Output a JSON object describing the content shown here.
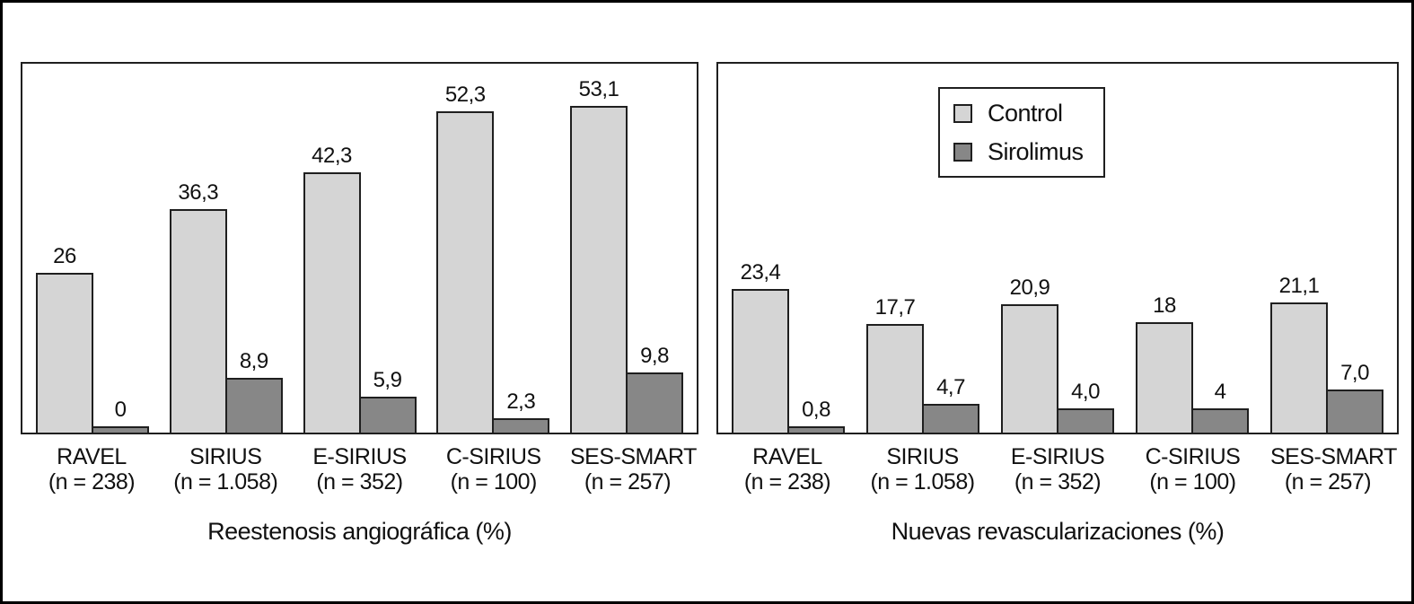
{
  "colors": {
    "control_fill": "#d5d5d5",
    "sirolimus_fill": "#878787",
    "stroke": "#1f1f1f",
    "background": "#ffffff"
  },
  "legend": {
    "items": [
      {
        "label": "Control",
        "color_key": "control_fill"
      },
      {
        "label": "Sirolimus",
        "color_key": "sirolimus_fill"
      }
    ]
  },
  "chart_data": [
    {
      "type": "bar",
      "title": "Reestenosis angiográfica (%)",
      "xlabel": "Reestenosis angiográfica (%)",
      "ylabel": "",
      "ylim": [
        0,
        60
      ],
      "grid": false,
      "categories": [
        "RAVEL",
        "SIRIUS",
        "E-SIRIUS",
        "C-SIRIUS",
        "SES-SMART"
      ],
      "category_sublabels": [
        "(n = 238)",
        "(n = 1.058)",
        "(n = 352)",
        "(n = 100)",
        "(n = 257)"
      ],
      "series": [
        {
          "name": "Control",
          "values": [
            26,
            36.3,
            42.3,
            52.3,
            53.1
          ],
          "value_labels": [
            "26",
            "36,3",
            "42,3",
            "52,3",
            "53,1"
          ]
        },
        {
          "name": "Sirolimus",
          "values": [
            0,
            8.9,
            5.9,
            2.3,
            9.8
          ],
          "value_labels": [
            "0",
            "8,9",
            "5,9",
            "2,3",
            "9,8"
          ]
        }
      ]
    },
    {
      "type": "bar",
      "title": "Nuevas revascularizaciones (%)",
      "xlabel": "Nuevas revascularizaciones (%)",
      "ylabel": "",
      "ylim": [
        0,
        60
      ],
      "grid": false,
      "legend_position": "top-center",
      "categories": [
        "RAVEL",
        "SIRIUS",
        "E-SIRIUS",
        "C-SIRIUS",
        "SES-SMART"
      ],
      "category_sublabels": [
        "(n = 238)",
        "(n = 1.058)",
        "(n = 352)",
        "(n = 100)",
        "(n = 257)"
      ],
      "series": [
        {
          "name": "Control",
          "values": [
            23.4,
            17.7,
            20.9,
            18,
            21.1
          ],
          "value_labels": [
            "23,4",
            "17,7",
            "20,9",
            "18",
            "21,1"
          ]
        },
        {
          "name": "Sirolimus",
          "values": [
            0.8,
            4.7,
            4.0,
            4,
            7.0
          ],
          "value_labels": [
            "0,8",
            "4,7",
            "4,0",
            "4",
            "7,0"
          ]
        }
      ]
    }
  ]
}
